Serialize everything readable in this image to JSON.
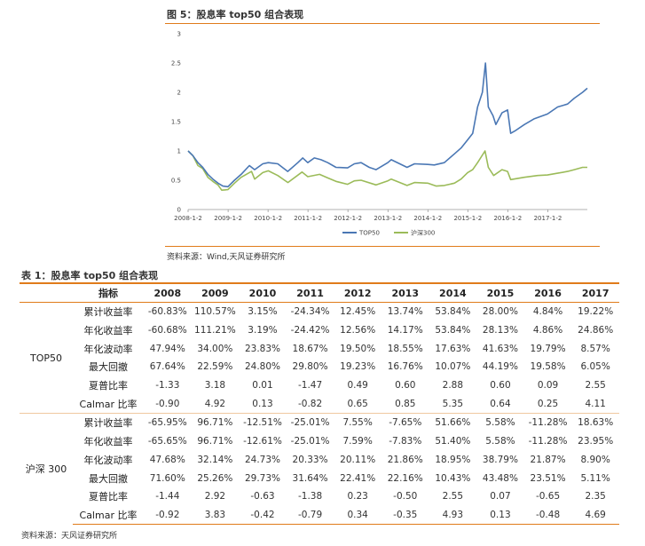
{
  "figure": {
    "title": "图 5：股息率 top50 组合表现",
    "source": "资料来源：Wind,天风证券研究所"
  },
  "chart_data": {
    "type": "line",
    "x_ticks": [
      "2008-1-2",
      "2009-1-2",
      "2010-1-2",
      "2011-1-2",
      "2012-1-2",
      "2013-1-2",
      "2014-1-2",
      "2015-1-2",
      "2016-1-2",
      "2017-1-2"
    ],
    "x_range": [
      "2008-01-02",
      "2017-12-29"
    ],
    "ylim": [
      0,
      3
    ],
    "y_ticks": [
      "0",
      "0.5",
      "1",
      "1.5",
      "2",
      "2.5",
      "3"
    ],
    "grid": false,
    "legend_position": "bottom-center",
    "series": [
      {
        "name": "TOP50",
        "color": "#4a77b4",
        "points": [
          [
            "2008-01-02",
            1.0
          ],
          [
            "2008-02-15",
            0.92
          ],
          [
            "2008-04-01",
            0.8
          ],
          [
            "2008-05-15",
            0.72
          ],
          [
            "2008-07-01",
            0.6
          ],
          [
            "2008-08-15",
            0.52
          ],
          [
            "2008-10-01",
            0.45
          ],
          [
            "2008-11-15",
            0.4
          ],
          [
            "2008-12-31",
            0.39
          ],
          [
            "2009-03-01",
            0.5
          ],
          [
            "2009-05-01",
            0.6
          ],
          [
            "2009-07-15",
            0.75
          ],
          [
            "2009-09-01",
            0.68
          ],
          [
            "2009-11-15",
            0.78
          ],
          [
            "2010-01-04",
            0.8
          ],
          [
            "2010-04-01",
            0.78
          ],
          [
            "2010-07-01",
            0.65
          ],
          [
            "2010-10-01",
            0.8
          ],
          [
            "2010-11-15",
            0.88
          ],
          [
            "2010-12-31",
            0.8
          ],
          [
            "2011-03-01",
            0.88
          ],
          [
            "2011-05-01",
            0.85
          ],
          [
            "2011-07-01",
            0.8
          ],
          [
            "2011-09-15",
            0.72
          ],
          [
            "2011-12-30",
            0.71
          ],
          [
            "2012-03-01",
            0.78
          ],
          [
            "2012-05-01",
            0.8
          ],
          [
            "2012-07-15",
            0.72
          ],
          [
            "2012-09-15",
            0.68
          ],
          [
            "2012-12-31",
            0.8
          ],
          [
            "2013-02-01",
            0.85
          ],
          [
            "2013-06-25",
            0.72
          ],
          [
            "2013-09-01",
            0.78
          ],
          [
            "2013-12-31",
            0.77
          ],
          [
            "2014-03-01",
            0.76
          ],
          [
            "2014-06-01",
            0.8
          ],
          [
            "2014-09-01",
            0.95
          ],
          [
            "2014-11-01",
            1.05
          ],
          [
            "2014-12-31",
            1.19
          ],
          [
            "2015-02-15",
            1.3
          ],
          [
            "2015-04-01",
            1.75
          ],
          [
            "2015-05-15",
            2.0
          ],
          [
            "2015-06-12",
            2.5
          ],
          [
            "2015-07-08",
            1.75
          ],
          [
            "2015-08-20",
            1.6
          ],
          [
            "2015-09-15",
            1.45
          ],
          [
            "2015-11-10",
            1.65
          ],
          [
            "2015-12-31",
            1.7
          ],
          [
            "2016-01-28",
            1.3
          ],
          [
            "2016-03-15",
            1.35
          ],
          [
            "2016-06-01",
            1.45
          ],
          [
            "2016-09-01",
            1.55
          ],
          [
            "2016-12-30",
            1.63
          ],
          [
            "2017-04-01",
            1.75
          ],
          [
            "2017-07-01",
            1.8
          ],
          [
            "2017-09-01",
            1.9
          ],
          [
            "2017-11-15",
            2.0
          ],
          [
            "2017-12-29",
            2.07
          ]
        ]
      },
      {
        "name": "沪深300",
        "color": "#9bbb59",
        "points": [
          [
            "2008-01-02",
            1.0
          ],
          [
            "2008-02-15",
            0.92
          ],
          [
            "2008-04-01",
            0.75
          ],
          [
            "2008-05-15",
            0.7
          ],
          [
            "2008-07-01",
            0.55
          ],
          [
            "2008-08-15",
            0.48
          ],
          [
            "2008-10-01",
            0.42
          ],
          [
            "2008-11-04",
            0.33
          ],
          [
            "2008-12-31",
            0.34
          ],
          [
            "2009-03-01",
            0.45
          ],
          [
            "2009-05-01",
            0.55
          ],
          [
            "2009-08-04",
            0.65
          ],
          [
            "2009-09-01",
            0.52
          ],
          [
            "2009-11-15",
            0.63
          ],
          [
            "2010-01-04",
            0.66
          ],
          [
            "2010-04-01",
            0.58
          ],
          [
            "2010-07-02",
            0.46
          ],
          [
            "2010-11-08",
            0.64
          ],
          [
            "2010-12-31",
            0.56
          ],
          [
            "2011-04-18",
            0.6
          ],
          [
            "2011-07-01",
            0.54
          ],
          [
            "2011-09-15",
            0.48
          ],
          [
            "2011-12-30",
            0.43
          ],
          [
            "2012-03-01",
            0.49
          ],
          [
            "2012-05-01",
            0.5
          ],
          [
            "2012-09-15",
            0.42
          ],
          [
            "2012-12-31",
            0.49
          ],
          [
            "2013-02-01",
            0.52
          ],
          [
            "2013-06-25",
            0.41
          ],
          [
            "2013-09-01",
            0.46
          ],
          [
            "2013-12-31",
            0.45
          ],
          [
            "2014-03-20",
            0.4
          ],
          [
            "2014-06-01",
            0.41
          ],
          [
            "2014-09-01",
            0.45
          ],
          [
            "2014-11-01",
            0.52
          ],
          [
            "2014-12-31",
            0.63
          ],
          [
            "2015-02-15",
            0.68
          ],
          [
            "2015-04-01",
            0.8
          ],
          [
            "2015-06-08",
            1.0
          ],
          [
            "2015-07-08",
            0.72
          ],
          [
            "2015-08-26",
            0.58
          ],
          [
            "2015-11-10",
            0.68
          ],
          [
            "2015-12-31",
            0.65
          ],
          [
            "2016-01-28",
            0.51
          ],
          [
            "2016-06-01",
            0.55
          ],
          [
            "2016-10-01",
            0.58
          ],
          [
            "2016-12-30",
            0.59
          ],
          [
            "2017-04-01",
            0.62
          ],
          [
            "2017-07-01",
            0.65
          ],
          [
            "2017-09-01",
            0.68
          ],
          [
            "2017-11-15",
            0.72
          ],
          [
            "2017-12-29",
            0.72
          ]
        ]
      }
    ]
  },
  "table": {
    "title": "表 1：股息率 top50 组合表现",
    "header": [
      "",
      "指标",
      "2008",
      "2009",
      "2010",
      "2011",
      "2012",
      "2013",
      "2014",
      "2015",
      "2016",
      "2017"
    ],
    "groups": [
      {
        "name": "TOP50",
        "rows": [
          {
            "metric": "累计收益率",
            "values": [
              "-60.83%",
              "110.57%",
              "3.15%",
              "-24.34%",
              "12.45%",
              "13.74%",
              "53.84%",
              "28.00%",
              "4.84%",
              "19.22%"
            ]
          },
          {
            "metric": "年化收益率",
            "values": [
              "-60.68%",
              "111.21%",
              "3.19%",
              "-24.42%",
              "12.56%",
              "14.17%",
              "53.84%",
              "28.13%",
              "4.86%",
              "24.86%"
            ]
          },
          {
            "metric": "年化波动率",
            "values": [
              "47.94%",
              "34.00%",
              "23.83%",
              "18.67%",
              "19.50%",
              "18.55%",
              "17.63%",
              "41.63%",
              "19.79%",
              "8.57%"
            ]
          },
          {
            "metric": "最大回撤",
            "values": [
              "67.64%",
              "22.59%",
              "24.80%",
              "29.80%",
              "19.23%",
              "16.76%",
              "10.07%",
              "44.19%",
              "19.58%",
              "6.05%"
            ]
          },
          {
            "metric": "夏普比率",
            "values": [
              "-1.33",
              "3.18",
              "0.01",
              "-1.47",
              "0.49",
              "0.60",
              "2.88",
              "0.60",
              "0.09",
              "2.55"
            ]
          },
          {
            "metric": "Calmar 比率",
            "values": [
              "-0.90",
              "4.92",
              "0.13",
              "-0.82",
              "0.65",
              "0.85",
              "5.35",
              "0.64",
              "0.25",
              "4.11"
            ]
          }
        ]
      },
      {
        "name": "沪深 300",
        "rows": [
          {
            "metric": "累计收益率",
            "values": [
              "-65.95%",
              "96.71%",
              "-12.51%",
              "-25.01%",
              "7.55%",
              "-7.65%",
              "51.66%",
              "5.58%",
              "-11.28%",
              "18.63%"
            ]
          },
          {
            "metric": "年化收益率",
            "values": [
              "-65.65%",
              "96.71%",
              "-12.61%",
              "-25.01%",
              "7.59%",
              "-7.83%",
              "51.40%",
              "5.58%",
              "-11.28%",
              "23.95%"
            ]
          },
          {
            "metric": "年化波动率",
            "values": [
              "47.68%",
              "32.14%",
              "24.73%",
              "20.33%",
              "20.11%",
              "21.86%",
              "18.95%",
              "38.79%",
              "21.87%",
              "8.90%"
            ]
          },
          {
            "metric": "最大回撤",
            "values": [
              "71.60%",
              "25.26%",
              "29.73%",
              "31.64%",
              "22.41%",
              "22.16%",
              "10.43%",
              "43.48%",
              "23.51%",
              "5.11%"
            ]
          },
          {
            "metric": "夏普比率",
            "values": [
              "-1.44",
              "2.92",
              "-0.63",
              "-1.38",
              "0.23",
              "-0.50",
              "2.55",
              "0.07",
              "-0.65",
              "2.35"
            ]
          },
          {
            "metric": "Calmar 比率",
            "values": [
              "-0.92",
              "3.83",
              "-0.42",
              "-0.79",
              "0.34",
              "-0.35",
              "4.93",
              "0.13",
              "-0.48",
              "4.69"
            ]
          }
        ]
      }
    ],
    "source": "资料来源：天风证券研究所"
  }
}
